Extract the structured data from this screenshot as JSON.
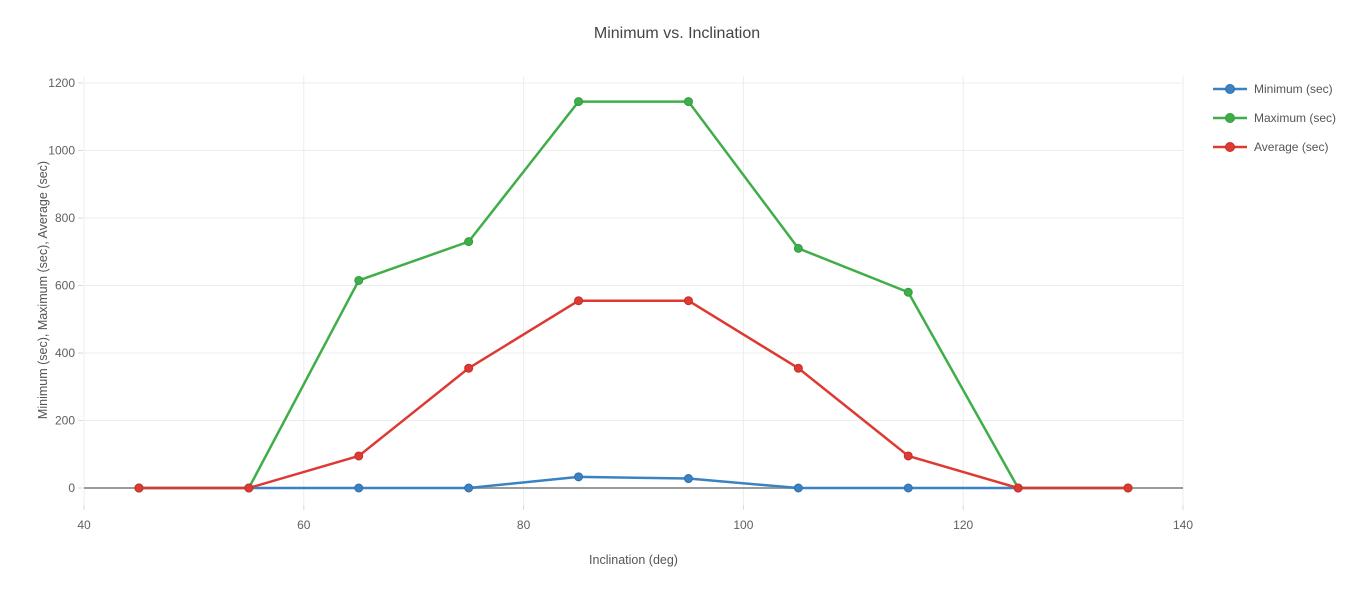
{
  "chart_data": {
    "type": "line",
    "title": "Minimum vs. Inclination",
    "xlabel": "Inclination (deg)",
    "ylabel": "Minimum (sec), Maximum (sec), Average (sec)",
    "x": [
      45,
      55,
      65,
      75,
      85,
      95,
      105,
      115,
      125,
      135
    ],
    "series": [
      {
        "name": "Minimum (sec)",
        "color": "#3b82c2",
        "marker_color": "#2e6fad",
        "values": [
          0,
          0,
          0,
          0,
          33,
          28,
          0,
          0,
          0,
          0
        ]
      },
      {
        "name": "Maximum (sec)",
        "color": "#3fae49",
        "marker_color": "#339b3e",
        "values": [
          0,
          0,
          615,
          730,
          1145,
          1145,
          710,
          580,
          0,
          0
        ]
      },
      {
        "name": "Average (sec)",
        "color": "#dc3a32",
        "marker_color": "#c52f28",
        "values": [
          0,
          0,
          95,
          355,
          555,
          555,
          355,
          95,
          0,
          0
        ]
      }
    ],
    "xlim": [
      40,
      140
    ],
    "ylim": [
      0,
      1200
    ],
    "xticks": [
      40,
      60,
      80,
      100,
      120,
      140
    ],
    "yticks": [
      0,
      200,
      400,
      600,
      800,
      1000,
      1200
    ],
    "grid": true,
    "legend_position": "right-top",
    "colors": {
      "grid": "#ececec",
      "zero_line": "#9b9b9b",
      "tick": "#d9d9d9",
      "tick_label": "#606060",
      "background": "#ffffff"
    }
  }
}
